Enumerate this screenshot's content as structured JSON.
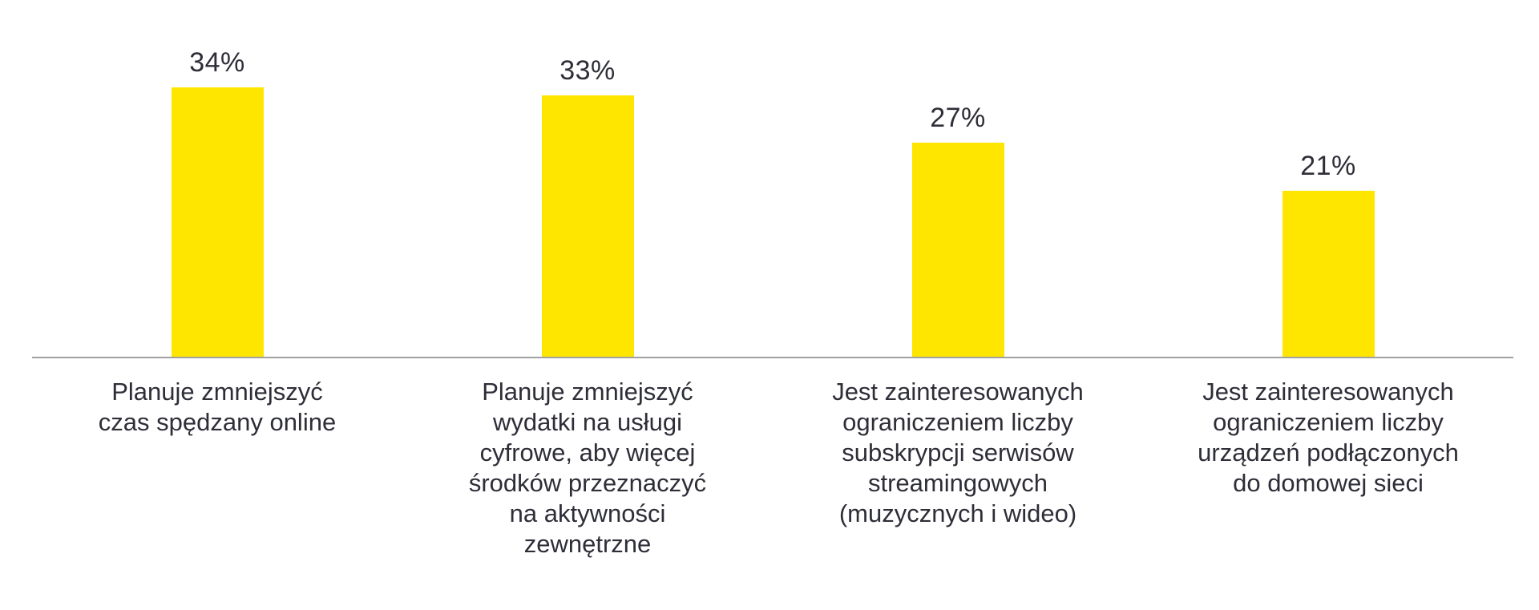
{
  "chart_data": {
    "type": "bar",
    "title": "",
    "xlabel": "",
    "ylabel": "",
    "categories": [
      "Planuje zmniejszyć\nczas spędzany online",
      "Planuje zmniejszyć\nwydatki na usługi\ncyfrowe, aby więcej\nśrodków przeznaczyć\nna aktywności\nzewnętrzne",
      "Jest zainteresowanych\nograniczeniem liczby\nsubskrypcji serwisów\nstreamingowych\n(muzycznych i wideo)",
      "Jest zainteresowanych\nograniczeniem liczby\nurządzeń podłączonych\ndo domowej sieci"
    ],
    "values": [
      34,
      33,
      27,
      21
    ],
    "value_labels": [
      "34%",
      "33%",
      "27%",
      "21%"
    ],
    "unit": "%",
    "ylim": [
      0,
      45
    ],
    "grid": false,
    "legend": false,
    "axis_ticks_visible": false,
    "bar_color": "#FFE600",
    "label_color": "#2E2E38",
    "axis_color": "#A0A0A0"
  }
}
